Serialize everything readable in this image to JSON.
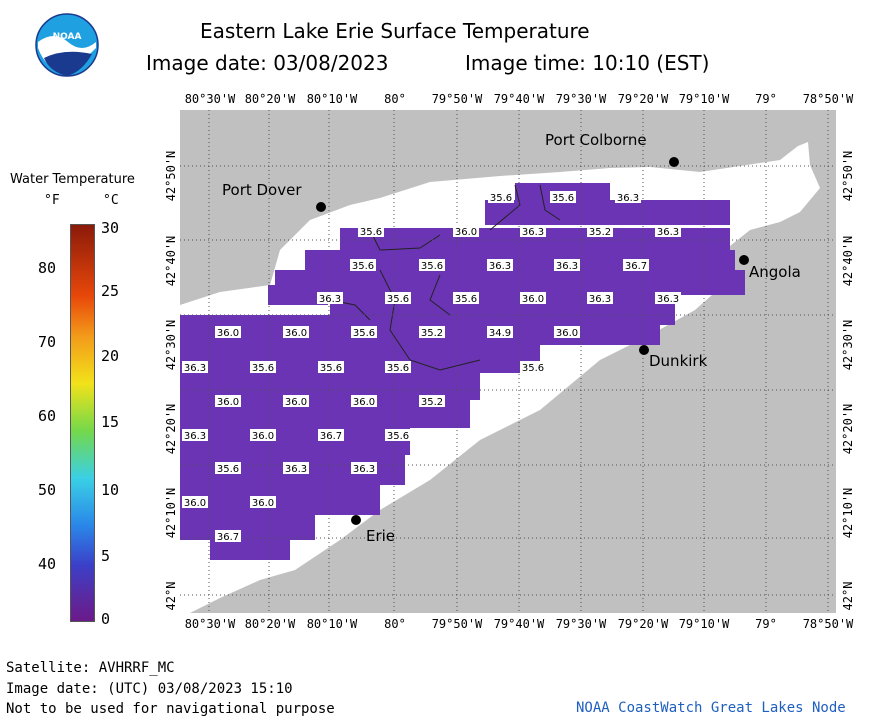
{
  "header": {
    "title": "Eastern Lake Erie Surface Temperature",
    "image_date": "Image date: 03/08/2023",
    "image_time": "Image time: 10:10 (EST)"
  },
  "logo": {
    "text": "NOAA",
    "icon": "noaa-logo"
  },
  "legend": {
    "title": "Water Temperature",
    "unit_f": "°F",
    "unit_c": "°C",
    "f_ticks": [
      "80",
      "70",
      "60",
      "50",
      "40"
    ],
    "c_ticks": [
      "30",
      "25",
      "20",
      "15",
      "10",
      "5",
      "0"
    ]
  },
  "map": {
    "lon_labels": [
      "80°30'W",
      "80°20'W",
      "80°10'W",
      "80°",
      "79°50'W",
      "79°40'W",
      "79°30'W",
      "79°20'W",
      "79°10'W",
      "79°",
      "78°50'W"
    ],
    "lat_labels": [
      "42°50'N",
      "42°40'N",
      "42°30'N",
      "42°20'N",
      "42°10'N",
      "42°N"
    ],
    "colors": {
      "land": "#c0c0c0",
      "unobserved_water": "#ffffff",
      "warm_water": "#6a34b4",
      "grid": "#505050"
    },
    "cities": [
      {
        "name": "Port Colborne"
      },
      {
        "name": "Port Dover"
      },
      {
        "name": "Angola"
      },
      {
        "name": "Dunkirk"
      },
      {
        "name": "Erie"
      }
    ],
    "temperature_labels": [
      "35.6",
      "35.6",
      "36.3",
      "35.6",
      "36.0",
      "36.3",
      "35.2",
      "36.3",
      "35.6",
      "35.6",
      "36.3",
      "36.3",
      "36.7",
      "36.3",
      "35.6",
      "35.6",
      "36.0",
      "36.3",
      "36.3",
      "36.0",
      "36.0",
      "35.6",
      "35.2",
      "34.9",
      "36.0",
      "36.3",
      "35.6",
      "35.6",
      "35.6",
      "35.6",
      "36.0",
      "36.0",
      "36.0",
      "35.2",
      "36.3",
      "36.0",
      "36.7",
      "35.6",
      "35.6",
      "36.3",
      "36.3",
      "36.0",
      "36.0",
      "36.7"
    ]
  },
  "footer": {
    "satellite": "Satellite: AVHRRF_MC",
    "utc_date": "Image date: (UTC) 03/08/2023  15:10",
    "disclaimer": "Not to be used for navigational purpose",
    "credit": "NOAA CoastWatch Great Lakes Node"
  }
}
